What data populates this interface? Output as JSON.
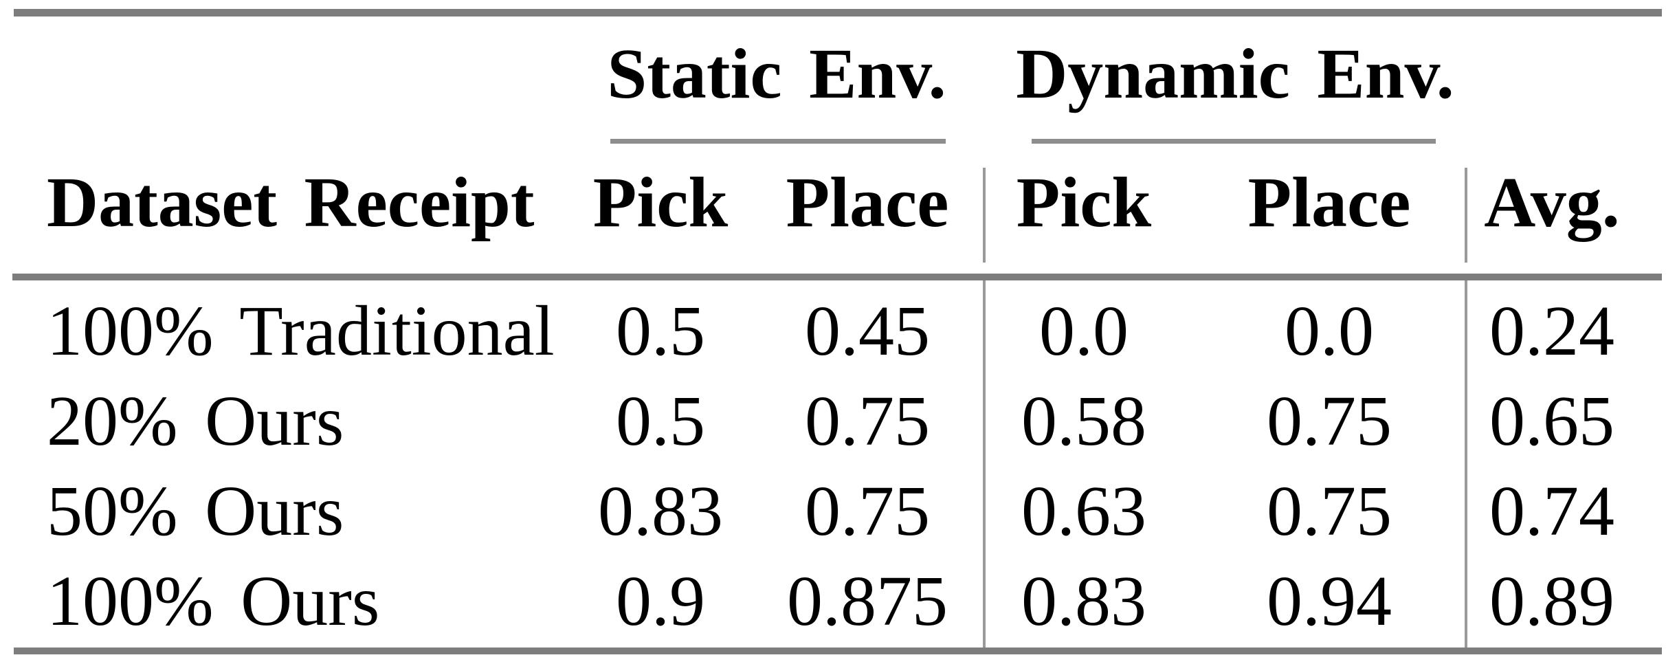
{
  "table": {
    "group_headers": {
      "static": "Static Env.",
      "dynamic": "Dynamic Env."
    },
    "column_headers": {
      "label": "Dataset Receipt",
      "static_pick": "Pick",
      "static_place": "Place",
      "dynamic_pick": "Pick",
      "dynamic_place": "Place",
      "avg": "Avg."
    },
    "rows": [
      {
        "label": "100% Traditional",
        "values": [
          "0.5",
          "0.45",
          "0.0",
          "0.0",
          "0.24"
        ]
      },
      {
        "label": "20% Ours",
        "values": [
          "0.5",
          "0.75",
          "0.58",
          "0.75",
          "0.65"
        ]
      },
      {
        "label": "50% Ours",
        "values": [
          "0.83",
          "0.75",
          "0.63",
          "0.75",
          "0.74"
        ]
      },
      {
        "label": "100% Ours",
        "values": [
          "0.9",
          "0.875",
          "0.83",
          "0.94",
          "0.89"
        ]
      }
    ]
  },
  "chart_data": {
    "type": "table",
    "title": "",
    "columns": [
      "Dataset Receipt",
      "Static Env. Pick",
      "Static Env. Place",
      "Dynamic Env. Pick",
      "Dynamic Env. Place",
      "Avg."
    ],
    "rows": [
      [
        "100% Traditional",
        0.5,
        0.45,
        0.0,
        0.0,
        0.24
      ],
      [
        "20% Ours",
        0.5,
        0.75,
        0.58,
        0.75,
        0.65
      ],
      [
        "50% Ours",
        0.83,
        0.75,
        0.63,
        0.75,
        0.74
      ],
      [
        "100% Ours",
        0.9,
        0.875,
        0.83,
        0.94,
        0.89
      ]
    ]
  },
  "colors": {
    "rule_thick": "#7d7d7d",
    "rule_cmid": "#8d8d8d",
    "rule_vertical": "#9a9a9a",
    "text": "#000000",
    "background": "#ffffff"
  }
}
